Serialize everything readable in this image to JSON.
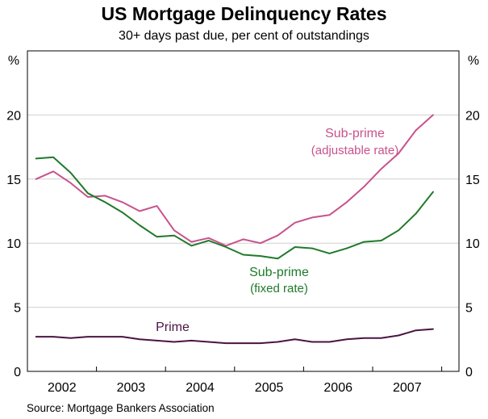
{
  "chart_data": {
    "type": "line",
    "title": "US Mortgage Delinquency Rates",
    "subtitle": "30+ days past due, per cent of outstandings",
    "source": "Source: Mortgage Bankers Association",
    "ylabel_left": "%",
    "ylabel_right": "%",
    "ylim": [
      0,
      25
    ],
    "yticks": [
      0,
      5,
      10,
      15,
      20
    ],
    "xlim": [
      2001.5,
      2007.75
    ],
    "xtick_labels": [
      "2002",
      "2003",
      "2004",
      "2005",
      "2006",
      "2007"
    ],
    "xtick_centers": [
      2002,
      2003,
      2004,
      2005,
      2006,
      2007
    ],
    "series": [
      {
        "name": "Sub-prime (adjustable rate)",
        "label_line1": "Sub-prime",
        "label_line2": "(adjustable rate)",
        "color": "#c8528c",
        "x": [
          2001.625,
          2001.875,
          2002.125,
          2002.375,
          2002.625,
          2002.875,
          2003.125,
          2003.375,
          2003.625,
          2003.875,
          2004.125,
          2004.375,
          2004.625,
          2004.875,
          2005.125,
          2005.375,
          2005.625,
          2005.875,
          2006.125,
          2006.375,
          2006.625,
          2006.875,
          2007.125,
          2007.375
        ],
        "values": [
          15.0,
          15.6,
          14.7,
          13.6,
          13.7,
          13.2,
          12.5,
          12.9,
          11.0,
          10.1,
          10.4,
          9.8,
          10.3,
          10.0,
          10.6,
          11.6,
          12.0,
          12.2,
          13.2,
          14.4,
          15.8,
          17.0,
          18.8,
          20.0
        ]
      },
      {
        "name": "Sub-prime (fixed rate)",
        "label_line1": "Sub-prime",
        "label_line2": "(fixed rate)",
        "color": "#1f7a2a",
        "x": [
          2001.625,
          2001.875,
          2002.125,
          2002.375,
          2002.625,
          2002.875,
          2003.125,
          2003.375,
          2003.625,
          2003.875,
          2004.125,
          2004.375,
          2004.625,
          2004.875,
          2005.125,
          2005.375,
          2005.625,
          2005.875,
          2006.125,
          2006.375,
          2006.625,
          2006.875,
          2007.125,
          2007.375
        ],
        "values": [
          16.6,
          16.7,
          15.5,
          13.9,
          13.2,
          12.4,
          11.4,
          10.5,
          10.6,
          9.8,
          10.2,
          9.7,
          9.1,
          9.0,
          8.8,
          9.7,
          9.6,
          9.2,
          9.6,
          10.1,
          10.2,
          11.0,
          12.3,
          14.0
        ]
      },
      {
        "name": "Prime",
        "label_line1": "Prime",
        "label_line2": "",
        "color": "#4a1442",
        "x": [
          2001.625,
          2001.875,
          2002.125,
          2002.375,
          2002.625,
          2002.875,
          2003.125,
          2003.375,
          2003.625,
          2003.875,
          2004.125,
          2004.375,
          2004.625,
          2004.875,
          2005.125,
          2005.375,
          2005.625,
          2005.875,
          2006.125,
          2006.375,
          2006.625,
          2006.875,
          2007.125,
          2007.375
        ],
        "values": [
          2.7,
          2.7,
          2.6,
          2.7,
          2.7,
          2.7,
          2.5,
          2.4,
          2.3,
          2.4,
          2.3,
          2.2,
          2.2,
          2.2,
          2.3,
          2.5,
          2.3,
          2.3,
          2.5,
          2.6,
          2.6,
          2.8,
          3.2,
          3.3
        ]
      }
    ]
  }
}
